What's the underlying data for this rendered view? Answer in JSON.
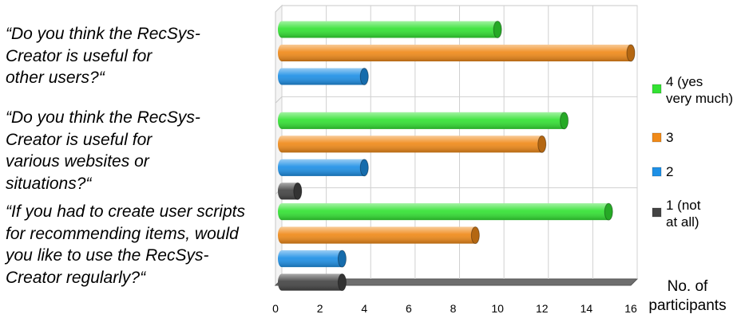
{
  "chart_data": {
    "type": "bar",
    "orientation": "horizontal",
    "categories": [
      [
        "“Do you think the RecSys-",
        "Creator is useful for",
        "other users?“"
      ],
      [
        "“Do you think the RecSys-",
        "Creator is useful for",
        "various websites or",
        "situations?“"
      ],
      [
        "“If you had to create user scripts",
        "for recommending items, would",
        "you like to use the RecSys-",
        "Creator regularly?“"
      ]
    ],
    "series": [
      {
        "name": [
          "4 (yes",
          "very much)"
        ],
        "color": "#33e233",
        "values": [
          10,
          13,
          15
        ]
      },
      {
        "name": [
          "3"
        ],
        "color": "#f08a19",
        "values": [
          16,
          12,
          9
        ]
      },
      {
        "name": [
          "2"
        ],
        "color": "#1e90e6",
        "values": [
          4,
          4,
          3
        ]
      },
      {
        "name": [
          "1 (not",
          "at all)"
        ],
        "color": "#444444",
        "values": [
          0,
          1,
          3
        ]
      }
    ],
    "x_ticks": [
      0,
      2,
      4,
      6,
      8,
      10,
      12,
      14,
      16
    ],
    "xlim": [
      0,
      16
    ],
    "xlabel": [
      "No. of",
      "participants"
    ],
    "grid": true,
    "legend": "right"
  }
}
